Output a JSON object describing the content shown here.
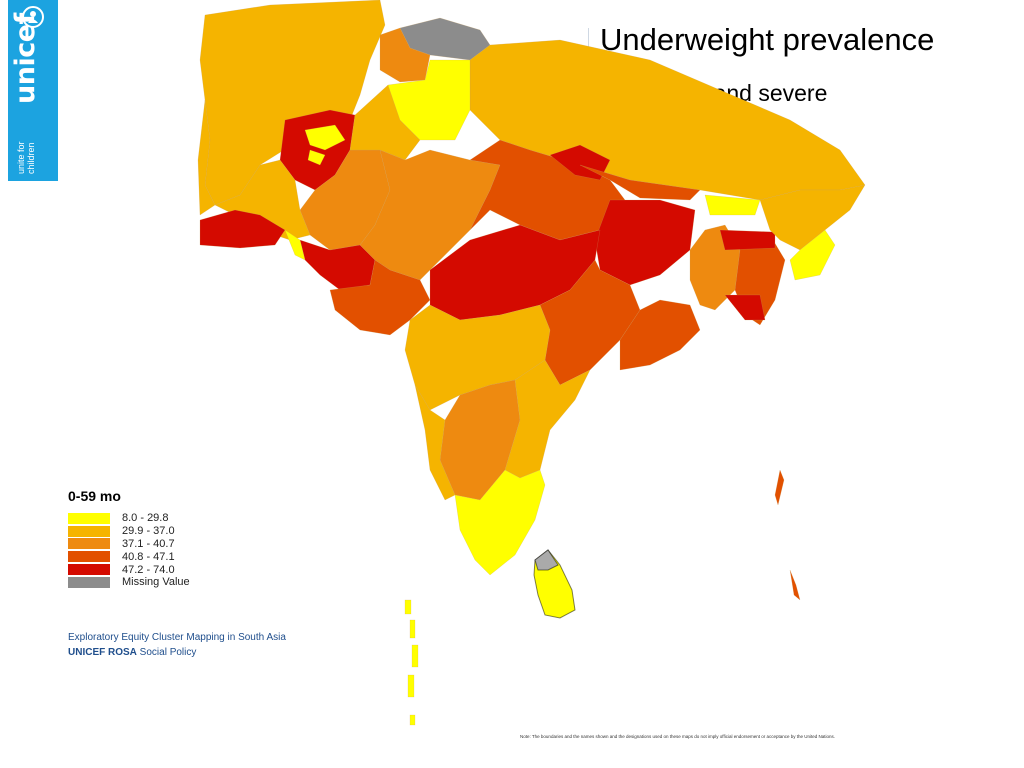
{
  "branding": {
    "logo_text": "unicef",
    "tagline": "unite for children"
  },
  "header": {
    "title": "Underweight prevalence",
    "subtitle": "moderate and severe"
  },
  "legend": {
    "title": "0-59 mo",
    "items": [
      {
        "label": "8.0 - 29.8",
        "color": "#ffff00"
      },
      {
        "label": "29.9 - 37.0",
        "color": "#f5b400"
      },
      {
        "label": "37.1 - 40.7",
        "color": "#ee8a10"
      },
      {
        "label": "40.8 - 47.1",
        "color": "#e25000"
      },
      {
        "label": "47.2 - 74.0",
        "color": "#d40a00"
      },
      {
        "label": "Missing Value",
        "color": "#8c8c8c"
      }
    ]
  },
  "footer": {
    "credit_line1": "Exploratory  Equity Cluster Mapping in South Asia",
    "credit_org": "UNICEF ROSA",
    "credit_line2_rest": " Social Policy",
    "note": "Note: The boundaries and the names shown and the designations used on these maps do not imply official endorsement or acceptance by the United Nations."
  },
  "colors": {
    "unicef_blue": "#1ca3e0"
  }
}
